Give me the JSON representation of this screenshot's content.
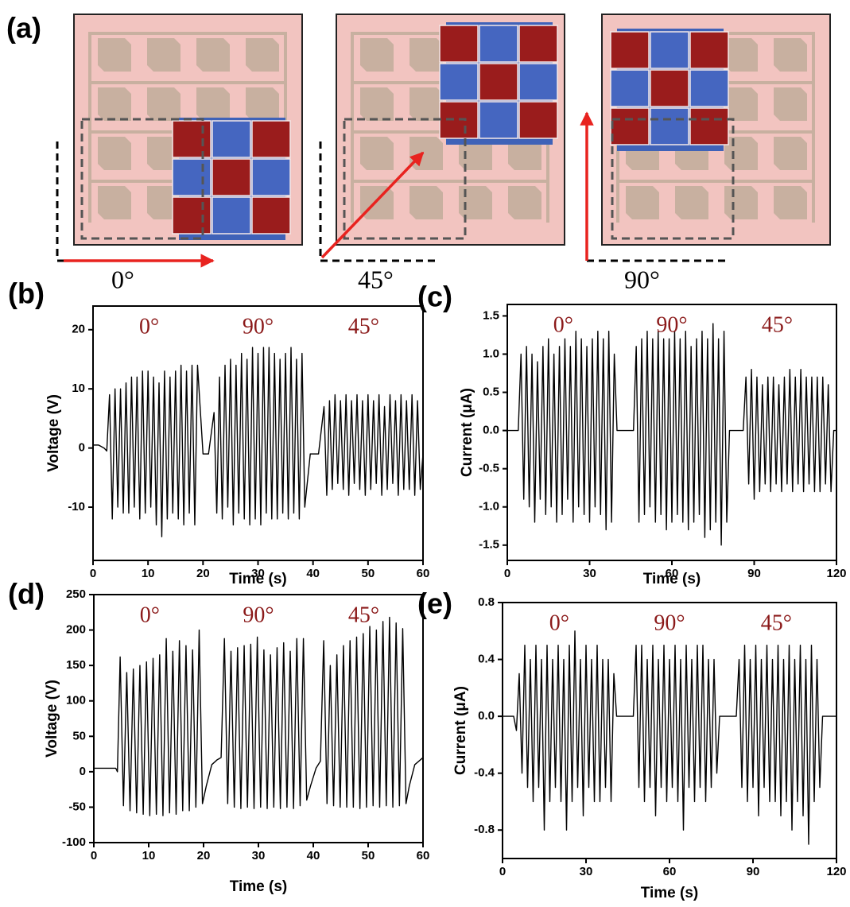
{
  "panel_a": {
    "label": "(a)",
    "angles": [
      "0°",
      "45°",
      "90°"
    ]
  },
  "chart_data": [
    {
      "type": "line",
      "panel_label": "(b)",
      "annotations": [
        "0°",
        "90°",
        "45°"
      ],
      "x_label": "Time (s)",
      "y_label": "Voltage (V)",
      "color": "#000000",
      "xlim": [
        0,
        60
      ],
      "xticks": [
        0,
        10,
        20,
        30,
        40,
        50,
        60
      ],
      "ylim": [
        -19,
        24
      ],
      "yticks": [
        -10,
        0,
        10,
        20
      ],
      "x": [
        0,
        1,
        2,
        2.5,
        3,
        3.5,
        4,
        4.5,
        5,
        5.5,
        6,
        6.5,
        7,
        7.5,
        8,
        8.5,
        9,
        9.5,
        10,
        10.5,
        11,
        11.5,
        12,
        12.5,
        13,
        13.5,
        14,
        14.5,
        15,
        15.5,
        16,
        16.5,
        17,
        17.5,
        18,
        18.5,
        19,
        20,
        21,
        22,
        22.5,
        23,
        23.5,
        24,
        24.5,
        25,
        25.5,
        26,
        26.5,
        27,
        27.5,
        28,
        28.5,
        29,
        29.5,
        30,
        30.5,
        31,
        31.5,
        32,
        32.5,
        33,
        33.5,
        34,
        34.5,
        35,
        35.5,
        36,
        36.5,
        37,
        37.5,
        38,
        38.5,
        39.5,
        41,
        42,
        42.5,
        43,
        43.5,
        44,
        44.5,
        45,
        45.5,
        46,
        46.5,
        47,
        47.5,
        48,
        48.5,
        49,
        49.5,
        50,
        50.5,
        51,
        51.5,
        52,
        52.5,
        53,
        53.5,
        54,
        54.5,
        55,
        55.5,
        56,
        56.5,
        57,
        57.5,
        58,
        58.5,
        59,
        59.5,
        60
      ],
      "values": [
        0.5,
        0.5,
        0,
        -0.5,
        9,
        -12,
        10,
        -10,
        10,
        -11,
        11,
        -11,
        12,
        -10,
        12,
        -12,
        13,
        -11,
        13,
        -10,
        12,
        -13,
        11,
        -15,
        13,
        -12,
        12,
        -11,
        13,
        -12,
        14,
        -13,
        13,
        -11,
        14,
        -13,
        14,
        -1,
        -1,
        6,
        -11,
        12,
        -12,
        14,
        -10,
        15,
        -13,
        14,
        -11,
        16,
        -12,
        15,
        -13,
        17,
        -12,
        16,
        -13,
        17,
        -11,
        17,
        -12,
        16,
        -12,
        15,
        -11,
        16,
        -12,
        17,
        -11,
        15,
        -12,
        16,
        -10,
        -1,
        -1,
        7,
        -8,
        8,
        -7,
        9,
        -6,
        8,
        -7,
        9,
        -8,
        8,
        -6,
        9,
        -7,
        8,
        -8,
        9,
        -7,
        8,
        -6,
        9,
        -8,
        7,
        -7,
        9,
        -6,
        8,
        -8,
        9,
        -7,
        8,
        -7,
        9,
        -8,
        8,
        -7,
        -1
      ]
    },
    {
      "type": "line",
      "panel_label": "(c)",
      "annotations": [
        "0°",
        "90°",
        "45°"
      ],
      "x_label": "Time (s)",
      "y_label": "Current (μA)",
      "color": "#000000",
      "xlim": [
        0,
        120
      ],
      "xticks": [
        0,
        30,
        60,
        90,
        120
      ],
      "ylim": [
        -1.7,
        1.65
      ],
      "yticks": [
        -1.5,
        {
          "value": -1,
          "label": "-1.0"
        },
        -0.5,
        {
          "value": 0,
          "label": "0.0"
        },
        0.5,
        {
          "value": 1,
          "label": "1.0"
        },
        1.5
      ],
      "x": [
        0,
        4,
        5,
        6,
        7,
        8,
        9,
        10,
        11,
        12,
        13,
        14,
        15,
        16,
        17,
        18,
        19,
        20,
        21,
        22,
        23,
        24,
        25,
        26,
        27,
        28,
        29,
        30,
        31,
        32,
        33,
        34,
        35,
        36,
        37,
        38,
        39,
        40,
        46,
        47,
        48,
        49,
        50,
        51,
        52,
        53,
        54,
        55,
        56,
        57,
        58,
        59,
        60,
        61,
        62,
        63,
        64,
        65,
        66,
        67,
        68,
        69,
        70,
        71,
        72,
        73,
        74,
        75,
        76,
        77,
        78,
        79,
        80,
        81,
        86,
        87,
        88,
        89,
        90,
        91,
        92,
        93,
        94,
        95,
        96,
        97,
        98,
        99,
        100,
        101,
        102,
        103,
        104,
        105,
        106,
        107,
        108,
        109,
        110,
        111,
        112,
        113,
        114,
        115,
        116,
        117,
        118,
        119,
        120
      ],
      "values": [
        0,
        0,
        1.0,
        -0.9,
        1.1,
        -1.0,
        1.0,
        -1.2,
        0.9,
        -0.9,
        1.1,
        -1.1,
        1.2,
        -1.0,
        1.0,
        -1.2,
        1.1,
        -1.1,
        1.2,
        -0.9,
        1.1,
        -1.2,
        1.3,
        -1.0,
        1.2,
        -1.1,
        1.1,
        -1.2,
        1.2,
        -1.0,
        1.3,
        -1.1,
        1.2,
        -1.3,
        1.3,
        -1.2,
        1.0,
        0,
        0,
        1.1,
        -1.2,
        1.2,
        -1.1,
        1.3,
        -1.0,
        1.2,
        -1.2,
        1.3,
        -1.1,
        1.2,
        -1.3,
        1.2,
        -1.2,
        1.3,
        -1.1,
        1.2,
        -1.2,
        1.3,
        -1.3,
        1.1,
        -1.2,
        1.2,
        -1.1,
        1.3,
        -1.4,
        1.2,
        -1.3,
        1.4,
        -1.2,
        1.2,
        -1.5,
        1.3,
        -1.2,
        0,
        0,
        0.7,
        -0.7,
        0.8,
        -0.9,
        0.7,
        -0.8,
        0.6,
        -0.7,
        0.7,
        -0.8,
        0.7,
        -0.7,
        0.6,
        -0.8,
        0.7,
        -0.7,
        0.8,
        -0.8,
        0.7,
        -0.7,
        0.8,
        -0.8,
        0.7,
        -0.7,
        0.7,
        -0.8,
        0.7,
        -0.8,
        0.7,
        -0.7,
        0.6,
        -0.8,
        0,
        0
      ]
    },
    {
      "type": "line",
      "panel_label": "(d)",
      "annotations": [
        "0°",
        "90°",
        "45°"
      ],
      "x_label": "Time (s)",
      "y_label": "Voltage (V)",
      "color": "#000000",
      "xlim": [
        0,
        60
      ],
      "xticks": [
        0,
        10,
        20,
        30,
        40,
        50,
        60
      ],
      "ylim": [
        -100,
        250
      ],
      "yticks": [
        -100,
        -50,
        0,
        50,
        100,
        150,
        200,
        250
      ],
      "x": [
        0,
        4,
        4.3,
        4.8,
        5.4,
        6.0,
        6.6,
        7.2,
        7.8,
        8.4,
        9.0,
        9.6,
        10.2,
        10.8,
        11.4,
        12.0,
        12.6,
        13.2,
        13.8,
        14.4,
        15.0,
        15.6,
        16.2,
        16.8,
        17.4,
        18.0,
        18.6,
        19.2,
        19.8,
        20.5,
        21.5,
        22.5,
        23.2,
        23.8,
        24.4,
        25.0,
        25.6,
        26.2,
        26.8,
        27.4,
        28.0,
        28.6,
        29.2,
        29.8,
        30.4,
        31.0,
        31.6,
        32.2,
        32.8,
        33.4,
        34.0,
        34.6,
        35.2,
        35.8,
        36.4,
        37.0,
        37.6,
        38.2,
        38.8,
        39.5,
        40.5,
        41.3,
        41.9,
        42.5,
        43.1,
        43.7,
        44.3,
        44.9,
        45.5,
        46.1,
        46.7,
        47.3,
        47.9,
        48.5,
        49.1,
        49.7,
        50.3,
        50.9,
        51.5,
        52.1,
        52.7,
        53.3,
        53.9,
        54.5,
        55.1,
        55.7,
        56.3,
        56.9,
        57.5,
        58.5,
        60
      ],
      "values": [
        5,
        5,
        0,
        162,
        -48,
        140,
        -55,
        145,
        -58,
        150,
        -60,
        155,
        -62,
        160,
        -60,
        165,
        -62,
        188,
        -58,
        170,
        -60,
        185,
        -55,
        178,
        -55,
        172,
        -50,
        200,
        -45,
        -20,
        10,
        17,
        20,
        188,
        -45,
        170,
        -50,
        175,
        -52,
        178,
        -50,
        180,
        -52,
        190,
        -50,
        172,
        -52,
        165,
        -50,
        175,
        -52,
        182,
        -50,
        170,
        -52,
        188,
        -48,
        188,
        -40,
        -20,
        5,
        15,
        185,
        -45,
        150,
        -48,
        165,
        -50,
        178,
        -50,
        185,
        -50,
        190,
        -52,
        195,
        -50,
        205,
        -48,
        200,
        -50,
        212,
        -48,
        218,
        -50,
        210,
        -48,
        202,
        -45,
        -20,
        10,
        20
      ]
    },
    {
      "type": "line",
      "panel_label": "(e)",
      "annotations": [
        "0°",
        "90°",
        "45°"
      ],
      "x_label": "Time (s)",
      "y_label": "Current (μA)",
      "color": "#000000",
      "xlim": [
        0,
        120
      ],
      "xticks": [
        0,
        30,
        60,
        90,
        120
      ],
      "ylim": [
        -1.0,
        0.8
      ],
      "yticks": [
        -0.8,
        -0.4,
        {
          "value": 0,
          "label": "0.0"
        },
        0.4,
        0.8
      ],
      "x": [
        0,
        4,
        5,
        6,
        7,
        8,
        9,
        10,
        11,
        12,
        13,
        14,
        15,
        16,
        17,
        18,
        19,
        20,
        21,
        22,
        23,
        24,
        25,
        26,
        27,
        28,
        29,
        30,
        31,
        32,
        33,
        34,
        35,
        36,
        37,
        38,
        39,
        40,
        41,
        47,
        48,
        49,
        50,
        51,
        52,
        53,
        54,
        55,
        56,
        57,
        58,
        59,
        60,
        61,
        62,
        63,
        64,
        65,
        66,
        67,
        68,
        69,
        70,
        71,
        72,
        73,
        74,
        75,
        76,
        77,
        78,
        84,
        85,
        86,
        87,
        88,
        89,
        90,
        91,
        92,
        93,
        94,
        95,
        96,
        97,
        98,
        99,
        100,
        101,
        102,
        103,
        104,
        105,
        106,
        107,
        108,
        109,
        110,
        111,
        112,
        113,
        114,
        115,
        120
      ],
      "values": [
        0,
        0,
        -0.1,
        0.3,
        -0.4,
        0.5,
        -0.5,
        0.4,
        -0.6,
        0.5,
        -0.5,
        0.4,
        -0.8,
        0.5,
        -0.6,
        0.4,
        -0.5,
        0.5,
        -0.6,
        0.4,
        -0.8,
        0.5,
        -0.6,
        0.6,
        -0.5,
        0.4,
        -0.7,
        0.5,
        -0.5,
        0.4,
        -0.6,
        0.5,
        -0.6,
        0.4,
        -0.5,
        0.4,
        -0.6,
        0.3,
        0,
        0,
        0.5,
        -0.5,
        0.5,
        -0.6,
        0.4,
        -0.5,
        0.5,
        -0.7,
        0.4,
        -0.5,
        0.5,
        -0.6,
        0.4,
        -0.5,
        0.5,
        -0.6,
        0.4,
        -0.8,
        0.5,
        -0.5,
        0.4,
        -0.6,
        0.5,
        -0.5,
        0.5,
        -0.6,
        0.4,
        -0.5,
        0.4,
        -0.4,
        0,
        0,
        0.4,
        -0.5,
        0.5,
        -0.6,
        0.4,
        -0.5,
        0.5,
        -0.7,
        0.4,
        -0.5,
        0.5,
        -0.6,
        0.4,
        -0.6,
        0.5,
        -0.7,
        0.4,
        -0.6,
        0.5,
        -0.8,
        0.4,
        -0.6,
        0.5,
        -0.7,
        0.4,
        -0.9,
        0.5,
        -0.6,
        0.4,
        -0.5,
        0,
        0
      ]
    }
  ]
}
